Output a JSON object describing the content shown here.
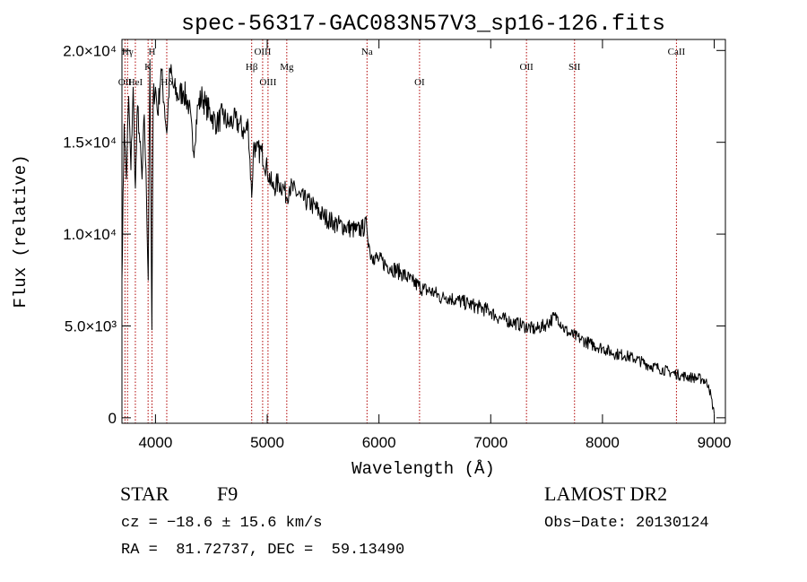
{
  "chart_data": {
    "type": "line",
    "title": "spec-56317-GAC083N57V3_sp16-126.fits",
    "xlabel": "Wavelength (Å)",
    "ylabel": "Flux (relative)",
    "xlim": [
      3700,
      9100
    ],
    "ylim": [
      -300,
      20600
    ],
    "x_ticks": [
      4000,
      5000,
      6000,
      7000,
      8000,
      9000
    ],
    "x_tick_labels": [
      "4000",
      "5000",
      "6000",
      "7000",
      "8000",
      "9000"
    ],
    "y_ticks": [
      0,
      5000,
      10000,
      15000,
      20000
    ],
    "y_tick_labels": [
      "0",
      "5.0×10³",
      "1.0×10⁴",
      "1.5×10⁴",
      "2.0×10⁴"
    ],
    "grid": false,
    "series": [
      {
        "x": [
          3700,
          3720,
          3740,
          3760,
          3780,
          3800,
          3820,
          3840,
          3860,
          3880,
          3900,
          3920,
          3935,
          3950,
          3968,
          3980,
          4000,
          4020,
          4050,
          4080,
          4101,
          4130,
          4160,
          4200,
          4250,
          4300,
          4340,
          4380,
          4420,
          4450,
          4500,
          4550,
          4600,
          4650,
          4700,
          4750,
          4800,
          4830,
          4861,
          4880,
          4900,
          4950,
          5000,
          5050,
          5100,
          5150,
          5175,
          5200,
          5300,
          5400,
          5500,
          5600,
          5700,
          5800,
          5850,
          5890,
          5920,
          5950,
          6000,
          6100,
          6200,
          6300,
          6400,
          6500,
          6563,
          6600,
          6700,
          6800,
          6900,
          7000,
          7050,
          7100,
          7200,
          7300,
          7400,
          7500,
          7550,
          7600,
          7650,
          7700,
          7800,
          7900,
          8000,
          8100,
          8200,
          8300,
          8400,
          8500,
          8600,
          8700,
          8800,
          8900,
          8950,
          9000
        ],
        "y": [
          7500,
          16000,
          13000,
          17500,
          13500,
          18000,
          12500,
          17000,
          15000,
          13000,
          16500,
          12000,
          7500,
          19500,
          4800,
          17500,
          18000,
          16500,
          19000,
          17000,
          15500,
          19000,
          18000,
          17500,
          17800,
          17000,
          14500,
          17000,
          17500,
          17000,
          16500,
          16000,
          16500,
          16000,
          16200,
          16000,
          15500,
          16000,
          12000,
          15000,
          14500,
          14500,
          13500,
          12500,
          12800,
          12500,
          12000,
          12600,
          12000,
          11600,
          11000,
          10600,
          10400,
          10200,
          10300,
          10500,
          9000,
          8800,
          8600,
          8200,
          7900,
          7400,
          7000,
          6800,
          6500,
          6600,
          6400,
          6200,
          6000,
          5800,
          5500,
          5400,
          5200,
          5000,
          4800,
          5100,
          5400,
          5500,
          4900,
          4600,
          4300,
          4000,
          3800,
          3500,
          3400,
          3200,
          2900,
          2700,
          2500,
          2300,
          2200,
          2100,
          1800,
          200
        ]
      }
    ],
    "lines": [
      {
        "label": "OII",
        "x": 3727,
        "row": 3
      },
      {
        "label": "Hγ",
        "x": 3750,
        "row": 1
      },
      {
        "label": "HeI",
        "x": 3820,
        "row": 3
      },
      {
        "label": "K",
        "x": 3934,
        "row": 2
      },
      {
        "label": "H",
        "x": 3969,
        "row": 1
      },
      {
        "label": "Hδ",
        "x": 4101,
        "row": 3
      },
      {
        "label": "Hβ",
        "x": 4861,
        "row": 2
      },
      {
        "label": "OIII",
        "x": 4959,
        "row": 1
      },
      {
        "label": "OIII",
        "x": 5007,
        "row": 3
      },
      {
        "label": "Mg",
        "x": 5175,
        "row": 2
      },
      {
        "label": "Na",
        "x": 5893,
        "row": 1
      },
      {
        "label": "OI",
        "x": 6363,
        "row": 3
      },
      {
        "label": "OII",
        "x": 7320,
        "row": 2
      },
      {
        "label": "SII",
        "x": 7750,
        "row": 2
      },
      {
        "label": "CaII",
        "x": 8662,
        "row": 1
      }
    ]
  },
  "info": {
    "class": "STAR",
    "subclass": "F9",
    "survey": "LAMOST DR2",
    "cz": "cz = −18.6 ± 15.6 km/s",
    "obs_date": "Obs−Date: 20130124",
    "coords": "RA =  81.72737, DEC =  59.13490"
  }
}
